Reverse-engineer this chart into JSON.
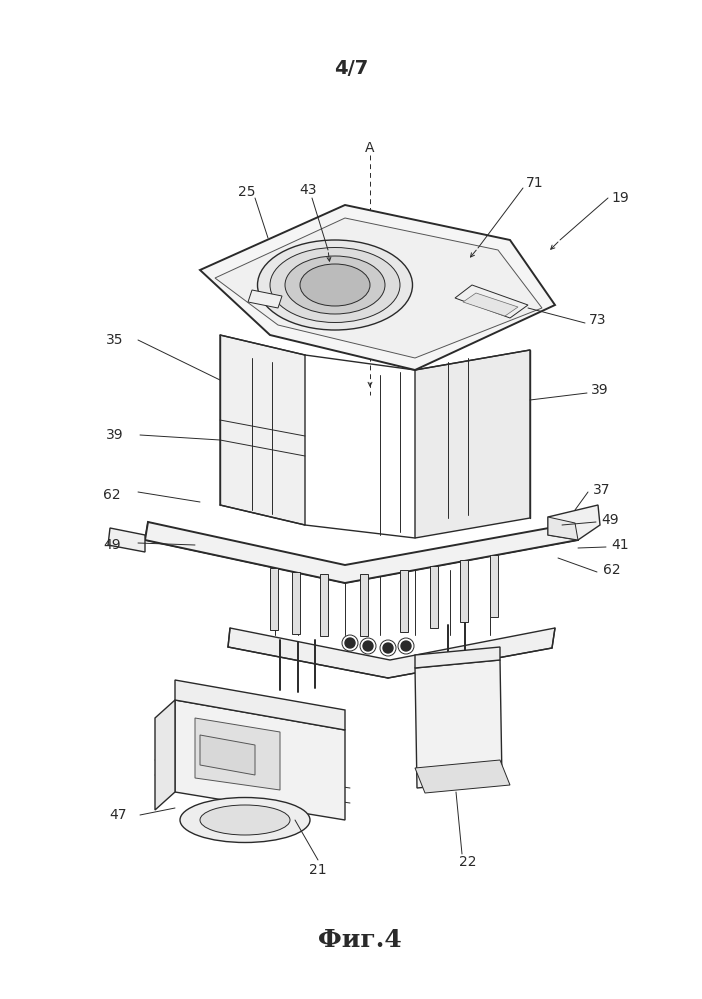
{
  "title": "4/7",
  "caption": "Фиг.4",
  "bg": "#ffffff",
  "lc": "#2a2a2a",
  "figsize": [
    7.02,
    9.99
  ],
  "dpi": 100
}
